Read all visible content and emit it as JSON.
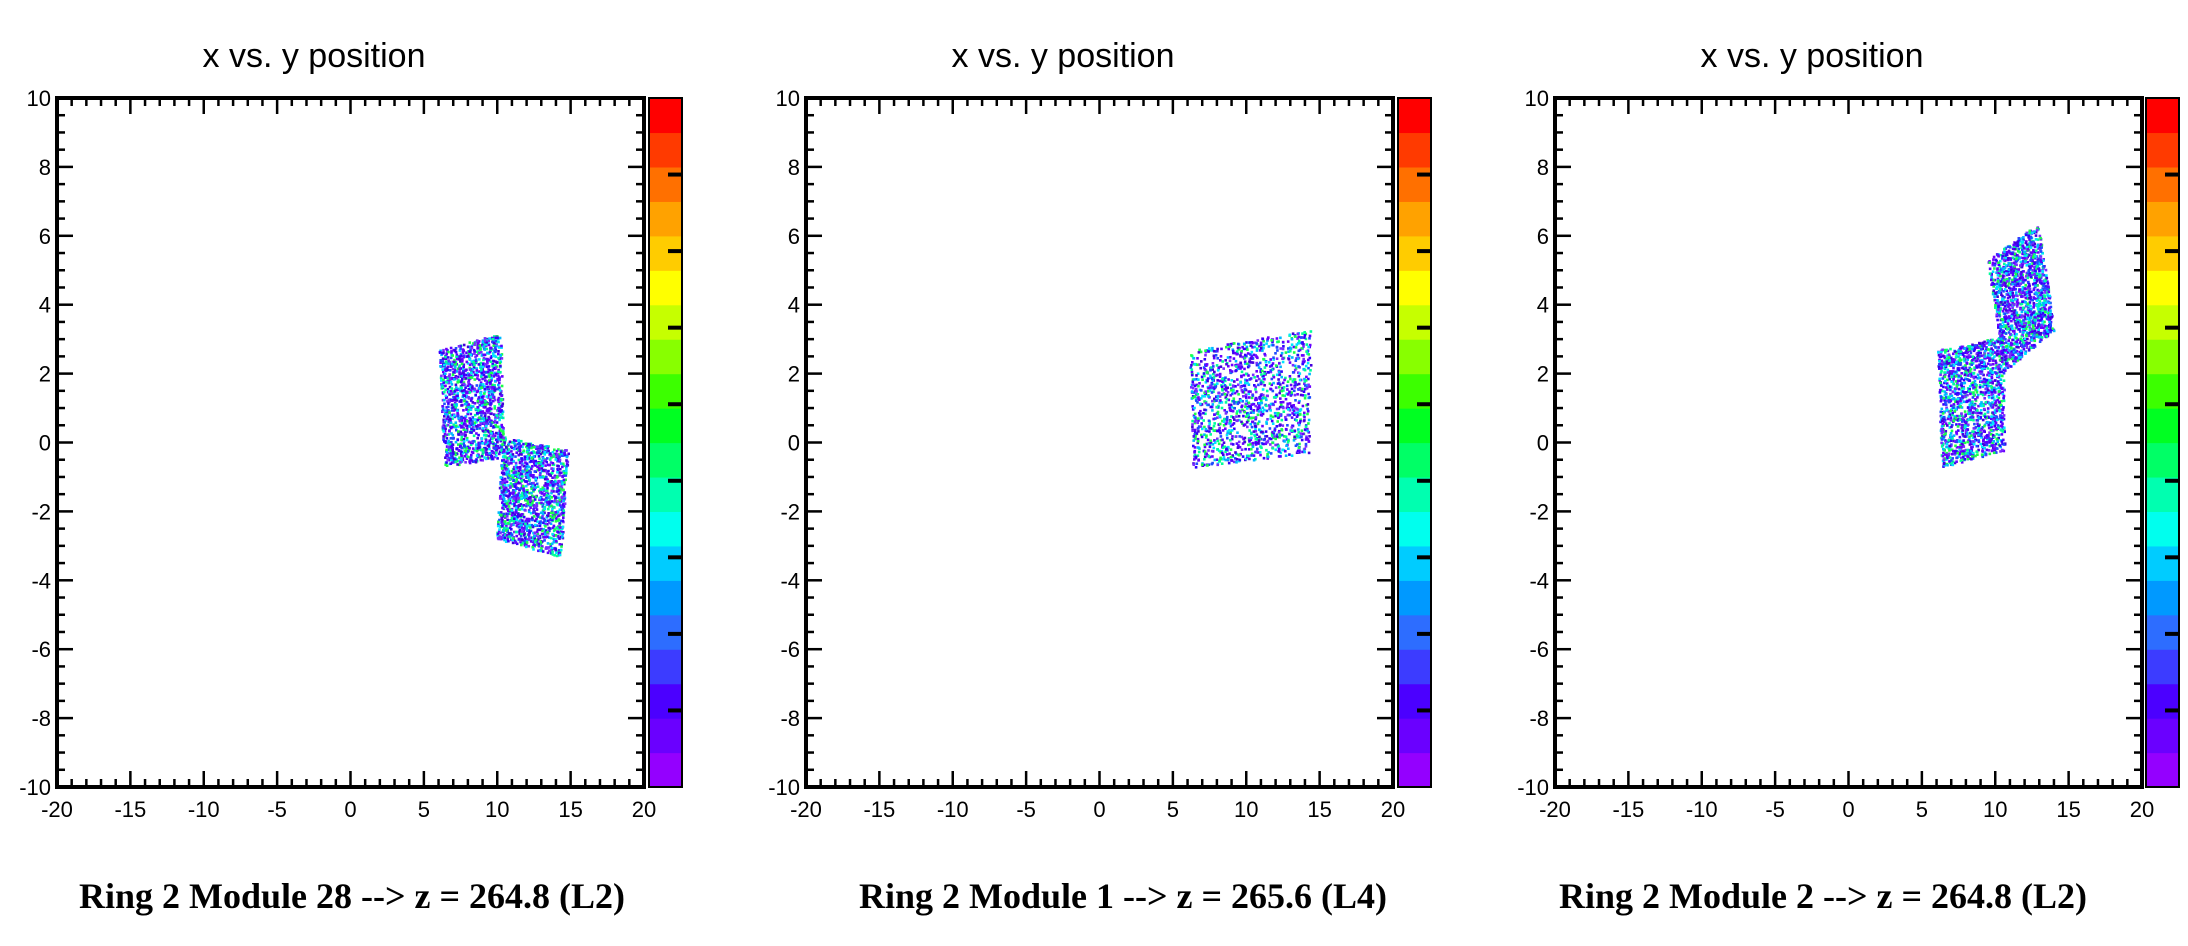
{
  "chart_data": [
    {
      "type": "heatmap",
      "title": "x vs. y position",
      "caption": "Ring 2 Module 28 -->  z = 264.8 (L2)",
      "xlim": [
        -20,
        20
      ],
      "ylim": [
        -10,
        10
      ],
      "x_ticks": [
        "-20",
        "-15",
        "-10",
        "-5",
        "0",
        "5",
        "10",
        "15",
        "20"
      ],
      "y_ticks": [
        "10",
        "8",
        "6",
        "4",
        "2",
        "0",
        "-2",
        "-4",
        "-6",
        "-8",
        "-10"
      ],
      "grid": false,
      "colorbar": true,
      "clusters": [
        {
          "corners": [
            [
              6.0,
              2.7
            ],
            [
              10.2,
              3.2
            ],
            [
              10.4,
              -0.4
            ],
            [
              6.3,
              -0.7
            ]
          ]
        },
        {
          "corners": [
            [
              10.3,
              0.2
            ],
            [
              14.8,
              -0.2
            ],
            [
              14.3,
              -3.3
            ],
            [
              9.9,
              -2.8
            ]
          ]
        }
      ]
    },
    {
      "type": "heatmap",
      "title": "x vs. y position",
      "caption": "Ring 2 Module 1 --> z = 265.6  (L4)",
      "xlim": [
        -20,
        20
      ],
      "ylim": [
        -10,
        10
      ],
      "x_ticks": [
        "-20",
        "-15",
        "-10",
        "-5",
        "0",
        "5",
        "10",
        "15",
        "20"
      ],
      "y_ticks": [
        "10",
        "8",
        "6",
        "4",
        "2",
        "0",
        "-2",
        "-4",
        "-6",
        "-8",
        "-10"
      ],
      "grid": false,
      "colorbar": true,
      "clusters": [
        {
          "corners": [
            [
              6.1,
              2.7
            ],
            [
              14.4,
              3.3
            ],
            [
              14.2,
              -0.3
            ],
            [
              6.3,
              -0.7
            ]
          ]
        }
      ]
    },
    {
      "type": "heatmap",
      "title": "x vs. y position",
      "caption": "Ring 2 Module 2 -->  z = 264.8 (L2)",
      "xlim": [
        -20,
        20
      ],
      "ylim": [
        -10,
        10
      ],
      "x_ticks": [
        "-20",
        "-15",
        "-10",
        "-5",
        "0",
        "5",
        "10",
        "15",
        "20"
      ],
      "y_ticks": [
        "10",
        "8",
        "6",
        "4",
        "2",
        "0",
        "-2",
        "-4",
        "-6",
        "-8",
        "-10"
      ],
      "grid": false,
      "colorbar": true,
      "clusters": [
        {
          "corners": [
            [
              6.0,
              2.7
            ],
            [
              10.5,
              3.1
            ],
            [
              10.6,
              -0.2
            ],
            [
              6.3,
              -0.7
            ]
          ]
        },
        {
          "corners": [
            [
              9.4,
              5.3
            ],
            [
              12.9,
              6.4
            ],
            [
              14.0,
              3.3
            ],
            [
              10.6,
              2.1
            ]
          ]
        }
      ]
    }
  ],
  "colorbar_colors": [
    "#9400ff",
    "#6a00ff",
    "#4b00ff",
    "#3c3cff",
    "#2d6dff",
    "#0099ff",
    "#00ccff",
    "#00ffee",
    "#00ffb0",
    "#00ff66",
    "#00ff22",
    "#3cff00",
    "#88ff00",
    "#c6ff00",
    "#ffff00",
    "#ffcc00",
    "#ffa200",
    "#ff7000",
    "#ff3a00",
    "#ff0000"
  ],
  "point_colors": [
    "#5a00ff",
    "#3300ff",
    "#7b2cff",
    "#1f4bff",
    "#00b8ff",
    "#00e5ff",
    "#00ff99",
    "#1aff4a",
    "#4400dd",
    "#6b00ff"
  ]
}
